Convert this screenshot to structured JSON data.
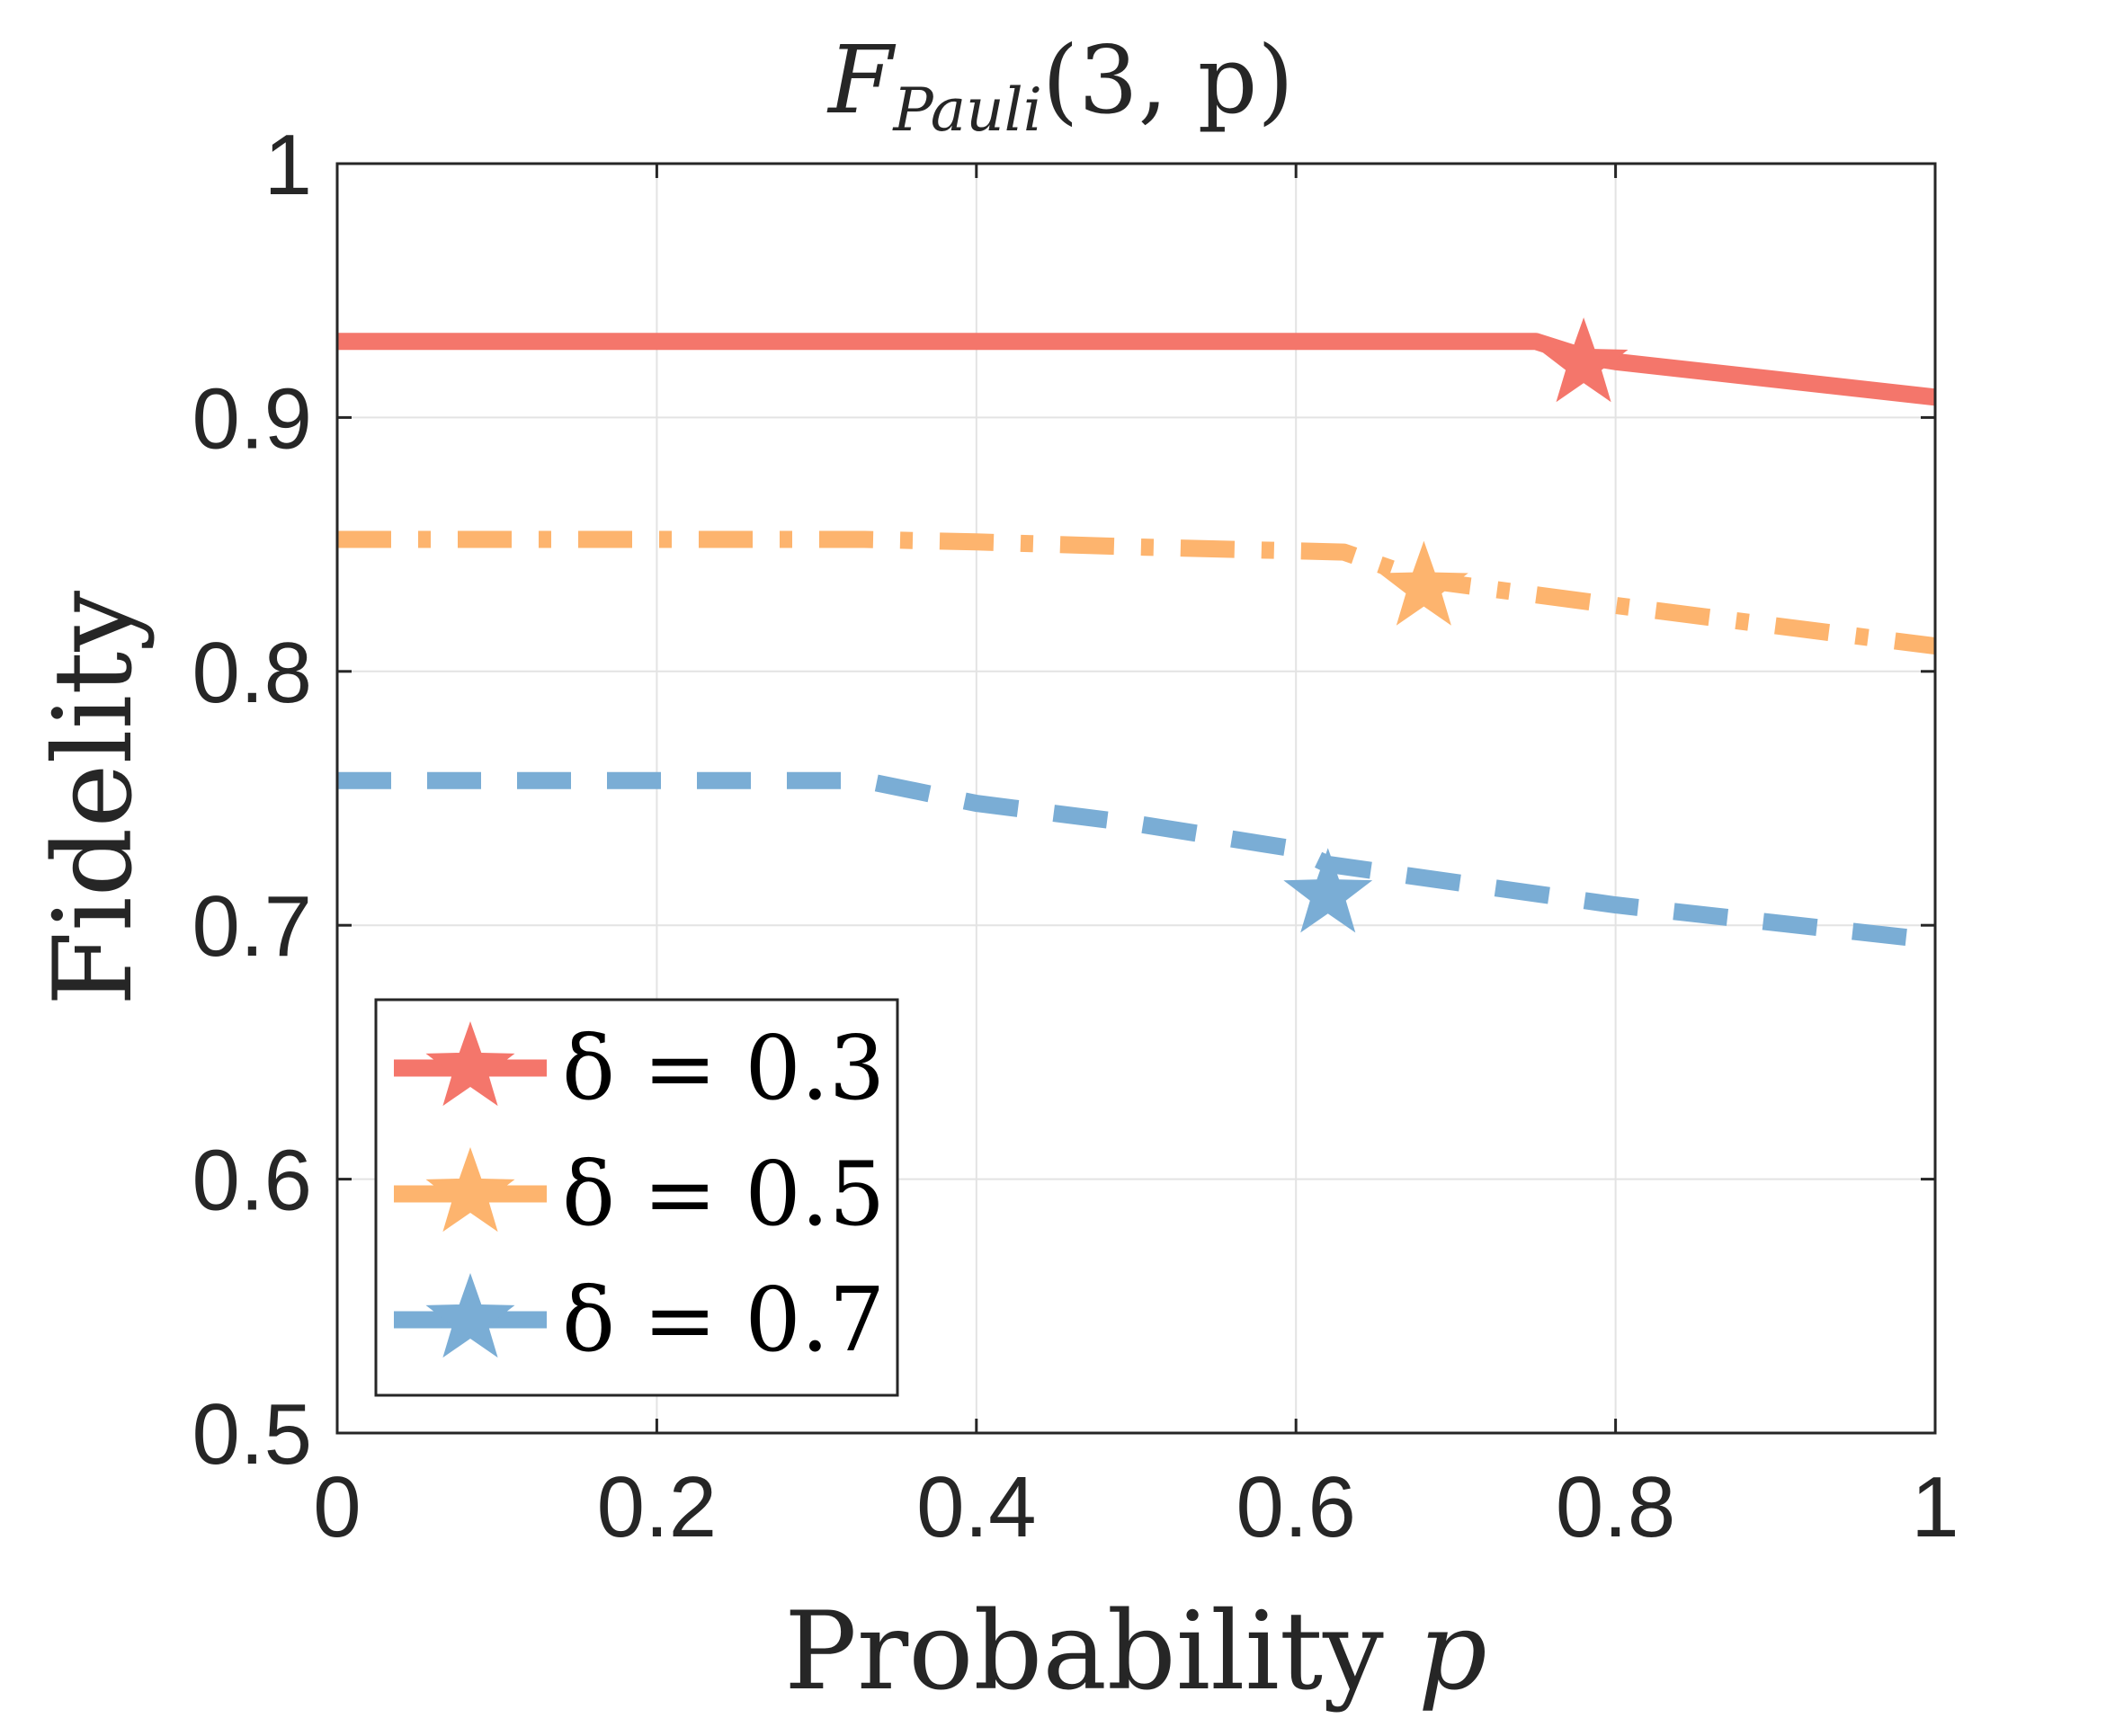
{
  "chart_data": {
    "type": "line",
    "title_main": "F",
    "title_sub": "Pauli",
    "title_args": "(3, p)",
    "xlabel_text": "Probability ",
    "xlabel_var": "p",
    "ylabel": "Fidelity",
    "xlim": [
      0,
      1
    ],
    "ylim": [
      0.5,
      1
    ],
    "xticks": [
      0,
      0.2,
      0.4,
      0.6,
      0.8,
      1
    ],
    "yticks": [
      0.5,
      0.6,
      0.7,
      0.8,
      0.9,
      1
    ],
    "xtick_labels": [
      "0",
      "0.2",
      "0.4",
      "0.6",
      "0.8",
      "1"
    ],
    "ytick_labels": [
      "0.5",
      "0.6",
      "0.7",
      "0.8",
      "0.9",
      "1"
    ],
    "grid": true,
    "legend_position": "bottom-left",
    "series": [
      {
        "name": "δ = 0.3",
        "color": "#f4766b",
        "style": "solid",
        "x": [
          0,
          0.75,
          0.78,
          0.8,
          0.9,
          1.0
        ],
        "y": [
          0.93,
          0.93,
          0.924,
          0.922,
          0.915,
          0.908
        ],
        "star": [
          0.78,
          0.921
        ]
      },
      {
        "name": "δ = 0.5",
        "color": "#fdb46e",
        "style": "dashdot",
        "x": [
          0,
          0.33,
          0.4,
          0.5,
          0.63,
          0.68,
          0.8,
          0.9,
          1.0
        ],
        "y": [
          0.852,
          0.852,
          0.851,
          0.849,
          0.847,
          0.836,
          0.826,
          0.818,
          0.81
        ],
        "star": [
          0.68,
          0.833
        ]
      },
      {
        "name": "δ = 0.7",
        "color": "#7aadd5",
        "style": "dashed",
        "x": [
          0,
          0.33,
          0.4,
          0.5,
          0.6,
          0.62,
          0.8,
          0.9,
          1.0
        ],
        "y": [
          0.757,
          0.757,
          0.748,
          0.74,
          0.73,
          0.724,
          0.708,
          0.701,
          0.694
        ],
        "star": [
          0.62,
          0.712
        ]
      }
    ]
  }
}
